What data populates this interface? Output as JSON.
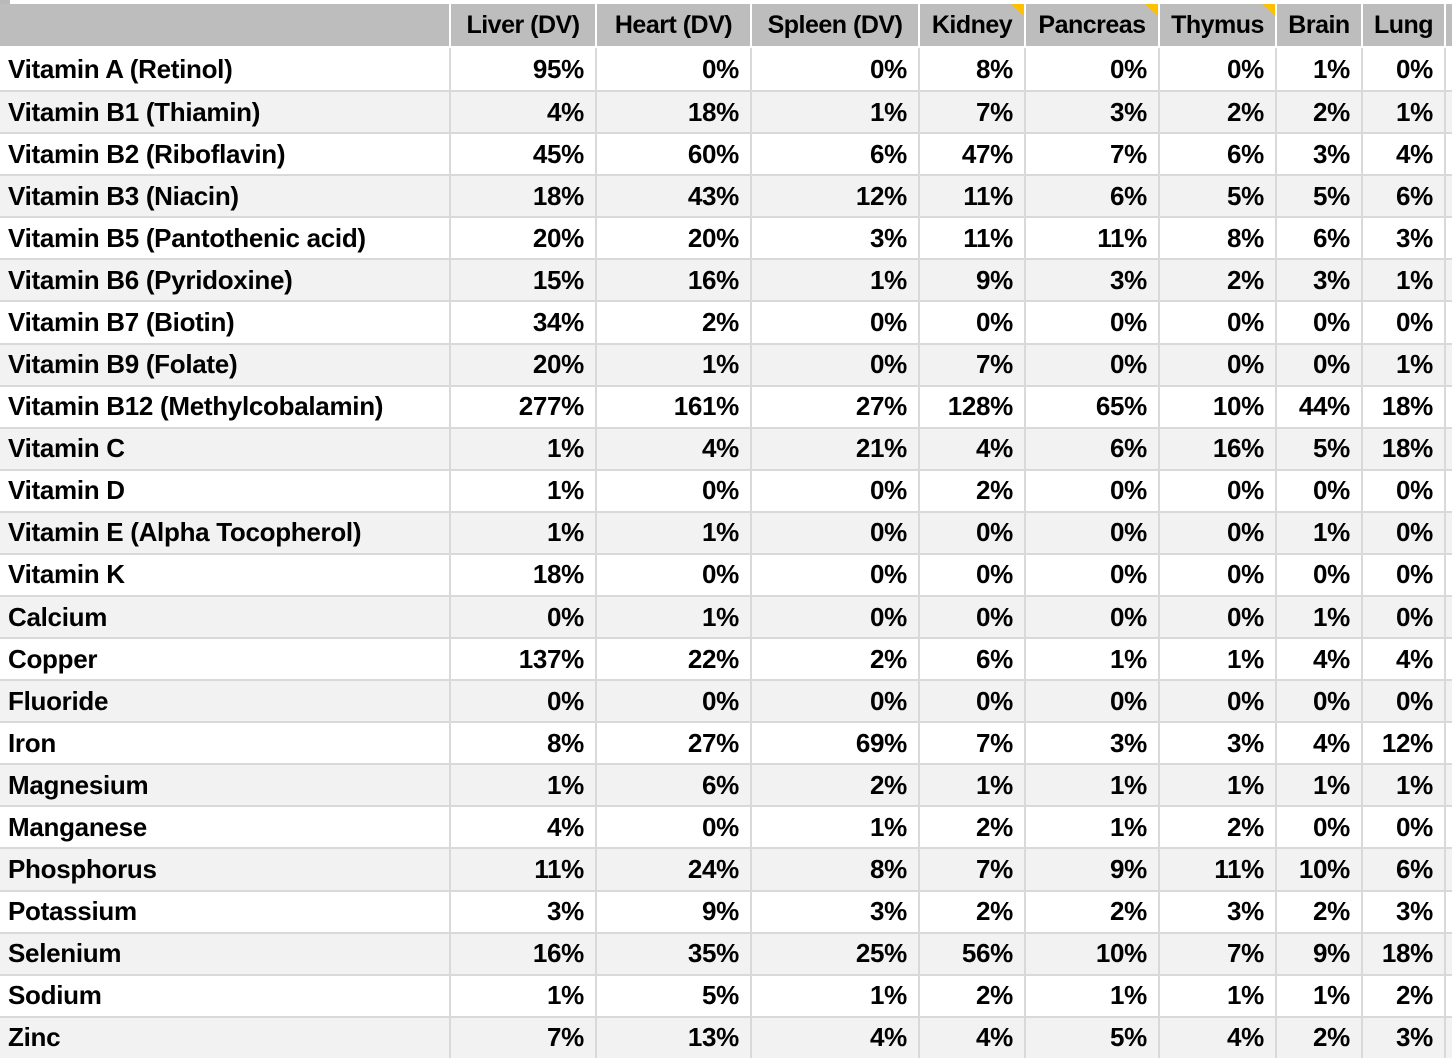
{
  "table": {
    "columns": [
      {
        "label": "",
        "note": false
      },
      {
        "label": "Liver (DV)",
        "note": false
      },
      {
        "label": "Heart (DV)",
        "note": false
      },
      {
        "label": "Spleen (DV)",
        "note": false
      },
      {
        "label": "Kidney",
        "note": true
      },
      {
        "label": "Pancreas",
        "note": true
      },
      {
        "label": "Thymus",
        "note": true
      },
      {
        "label": "Brain",
        "note": false
      },
      {
        "label": "Lung",
        "note": false
      }
    ],
    "rows": [
      {
        "label": "Vitamin A (Retinol)",
        "values": [
          "95%",
          "0%",
          "0%",
          "8%",
          "0%",
          "0%",
          "1%",
          "0%"
        ]
      },
      {
        "label": "Vitamin B1 (Thiamin)",
        "values": [
          "4%",
          "18%",
          "1%",
          "7%",
          "3%",
          "2%",
          "2%",
          "1%"
        ]
      },
      {
        "label": "Vitamin B2 (Riboflavin)",
        "values": [
          "45%",
          "60%",
          "6%",
          "47%",
          "7%",
          "6%",
          "3%",
          "4%"
        ]
      },
      {
        "label": "Vitamin B3 (Niacin)",
        "values": [
          "18%",
          "43%",
          "12%",
          "11%",
          "6%",
          "5%",
          "5%",
          "6%"
        ]
      },
      {
        "label": "Vitamin B5 (Pantothenic acid)",
        "values": [
          "20%",
          "20%",
          "3%",
          "11%",
          "11%",
          "8%",
          "6%",
          "3%"
        ]
      },
      {
        "label": "Vitamin B6 (Pyridoxine)",
        "values": [
          "15%",
          "16%",
          "1%",
          "9%",
          "3%",
          "2%",
          "3%",
          "1%"
        ]
      },
      {
        "label": "Vitamin B7 (Biotin)",
        "values": [
          "34%",
          "2%",
          "0%",
          "0%",
          "0%",
          "0%",
          "0%",
          "0%"
        ]
      },
      {
        "label": "Vitamin B9 (Folate)",
        "values": [
          "20%",
          "1%",
          "0%",
          "7%",
          "0%",
          "0%",
          "0%",
          "1%"
        ]
      },
      {
        "label": "Vitamin B12 (Methylcobalamin)",
        "values": [
          "277%",
          "161%",
          "27%",
          "128%",
          "65%",
          "10%",
          "44%",
          "18%"
        ]
      },
      {
        "label": "Vitamin C",
        "values": [
          "1%",
          "4%",
          "21%",
          "4%",
          "6%",
          "16%",
          "5%",
          "18%"
        ]
      },
      {
        "label": "Vitamin D",
        "values": [
          "1%",
          "0%",
          "0%",
          "2%",
          "0%",
          "0%",
          "0%",
          "0%"
        ]
      },
      {
        "label": "Vitamin E (Alpha Tocopherol)",
        "values": [
          "1%",
          "1%",
          "0%",
          "0%",
          "0%",
          "0%",
          "1%",
          "0%"
        ]
      },
      {
        "label": "Vitamin K",
        "values": [
          "18%",
          "0%",
          "0%",
          "0%",
          "0%",
          "0%",
          "0%",
          "0%"
        ]
      },
      {
        "label": "Calcium",
        "values": [
          "0%",
          "1%",
          "0%",
          "0%",
          "0%",
          "0%",
          "1%",
          "0%"
        ]
      },
      {
        "label": "Copper",
        "values": [
          "137%",
          "22%",
          "2%",
          "6%",
          "1%",
          "1%",
          "4%",
          "4%"
        ]
      },
      {
        "label": "Fluoride",
        "values": [
          "0%",
          "0%",
          "0%",
          "0%",
          "0%",
          "0%",
          "0%",
          "0%"
        ]
      },
      {
        "label": "Iron",
        "values": [
          "8%",
          "27%",
          "69%",
          "7%",
          "3%",
          "3%",
          "4%",
          "12%"
        ]
      },
      {
        "label": "Magnesium",
        "values": [
          "1%",
          "6%",
          "2%",
          "1%",
          "1%",
          "1%",
          "1%",
          "1%"
        ]
      },
      {
        "label": "Manganese",
        "values": [
          "4%",
          "0%",
          "1%",
          "2%",
          "1%",
          "2%",
          "0%",
          "0%"
        ]
      },
      {
        "label": "Phosphorus",
        "values": [
          "11%",
          "24%",
          "8%",
          "7%",
          "9%",
          "11%",
          "10%",
          "6%"
        ]
      },
      {
        "label": "Potassium",
        "values": [
          "3%",
          "9%",
          "3%",
          "2%",
          "2%",
          "3%",
          "2%",
          "3%"
        ]
      },
      {
        "label": "Selenium",
        "values": [
          "16%",
          "35%",
          "25%",
          "56%",
          "10%",
          "7%",
          "9%",
          "18%"
        ]
      },
      {
        "label": "Sodium",
        "values": [
          "1%",
          "5%",
          "1%",
          "2%",
          "1%",
          "1%",
          "1%",
          "2%"
        ]
      },
      {
        "label": "Zinc",
        "values": [
          "7%",
          "13%",
          "4%",
          "4%",
          "5%",
          "4%",
          "2%",
          "3%"
        ]
      }
    ]
  },
  "colors": {
    "header_bg": "#bdbdbd",
    "row_stripe": "#f2f2f2",
    "row_plain": "#ffffff",
    "gridline": "#d9d9d9",
    "comment_indicator": "#ffc000",
    "text": "#000000"
  }
}
